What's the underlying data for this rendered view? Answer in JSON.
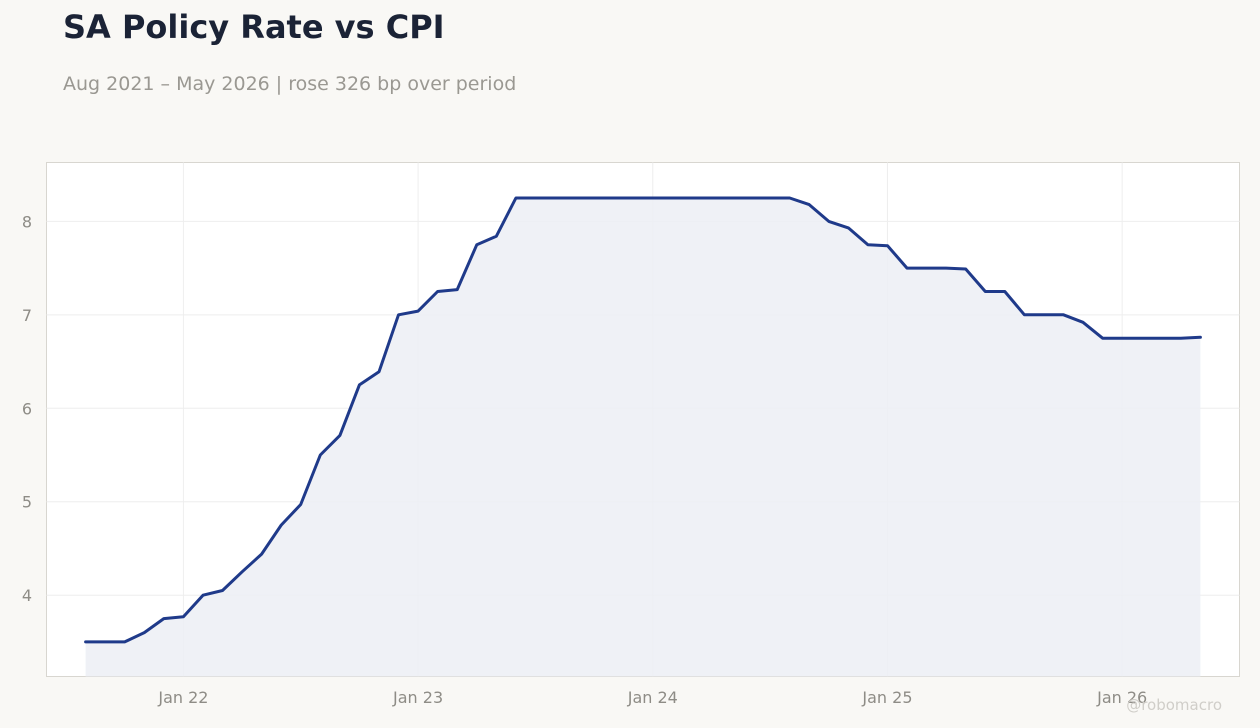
{
  "header": {
    "title": "SA Policy Rate vs CPI",
    "subtitle": "Aug 2021 – May 2026 | rose 326 bp over period"
  },
  "watermark": "@robomacro",
  "colors": {
    "line": "#1f3a8a",
    "fill": "#eceef5",
    "grid": "#eeeeee",
    "frame": "#d8d6d0",
    "plot_background": "#ffffff"
  },
  "chart_data": {
    "type": "area",
    "title": "SA Policy Rate vs CPI",
    "subtitle": "Aug 2021 – May 2026 | rose 326 bp over period",
    "xlabel": "",
    "ylabel": "",
    "grid": true,
    "x_ticks": [
      {
        "label": "Jan 22",
        "date": "2022-01"
      },
      {
        "label": "Jan 23",
        "date": "2023-01"
      },
      {
        "label": "Jan 24",
        "date": "2024-01"
      },
      {
        "label": "Jan 25",
        "date": "2025-01"
      },
      {
        "label": "Jan 26",
        "date": "2026-01"
      }
    ],
    "y_ticks": [
      4,
      5,
      6,
      7,
      8
    ],
    "xlim": [
      "2021-06",
      "2026-07"
    ],
    "ylim": [
      3.13,
      8.63
    ],
    "series": [
      {
        "x": [
          "2021-08",
          "2021-09",
          "2021-10",
          "2021-11",
          "2021-12",
          "2022-01",
          "2022-02",
          "2022-03",
          "2022-04",
          "2022-05",
          "2022-06",
          "2022-07",
          "2022-08",
          "2022-09",
          "2022-10",
          "2022-11",
          "2022-12",
          "2023-01",
          "2023-02",
          "2023-03",
          "2023-04",
          "2023-05",
          "2023-06",
          "2023-07",
          "2023-08",
          "2023-09",
          "2023-10",
          "2023-11",
          "2023-12",
          "2024-01",
          "2024-02",
          "2024-03",
          "2024-04",
          "2024-05",
          "2024-06",
          "2024-07",
          "2024-08",
          "2024-09",
          "2024-10",
          "2024-11",
          "2024-12",
          "2025-01",
          "2025-02",
          "2025-03",
          "2025-04",
          "2025-05",
          "2025-06",
          "2025-07",
          "2025-08",
          "2025-09",
          "2025-10",
          "2025-11",
          "2025-12",
          "2026-01",
          "2026-02",
          "2026-03",
          "2026-04",
          "2026-05"
        ],
        "y": [
          3.5,
          3.5,
          3.5,
          3.6,
          3.75,
          3.77,
          4.0,
          4.05,
          4.25,
          4.44,
          4.75,
          4.97,
          5.5,
          5.71,
          6.25,
          6.39,
          7.0,
          7.04,
          7.25,
          7.27,
          7.75,
          7.84,
          8.25,
          8.25,
          8.25,
          8.25,
          8.25,
          8.25,
          8.25,
          8.25,
          8.25,
          8.25,
          8.25,
          8.25,
          8.25,
          8.25,
          8.25,
          8.18,
          8.0,
          7.93,
          7.75,
          7.74,
          7.5,
          7.5,
          7.5,
          7.49,
          7.25,
          7.25,
          7.0,
          7.0,
          7.0,
          6.92,
          6.75,
          6.75,
          6.75,
          6.75,
          6.75,
          6.76
        ]
      }
    ]
  }
}
